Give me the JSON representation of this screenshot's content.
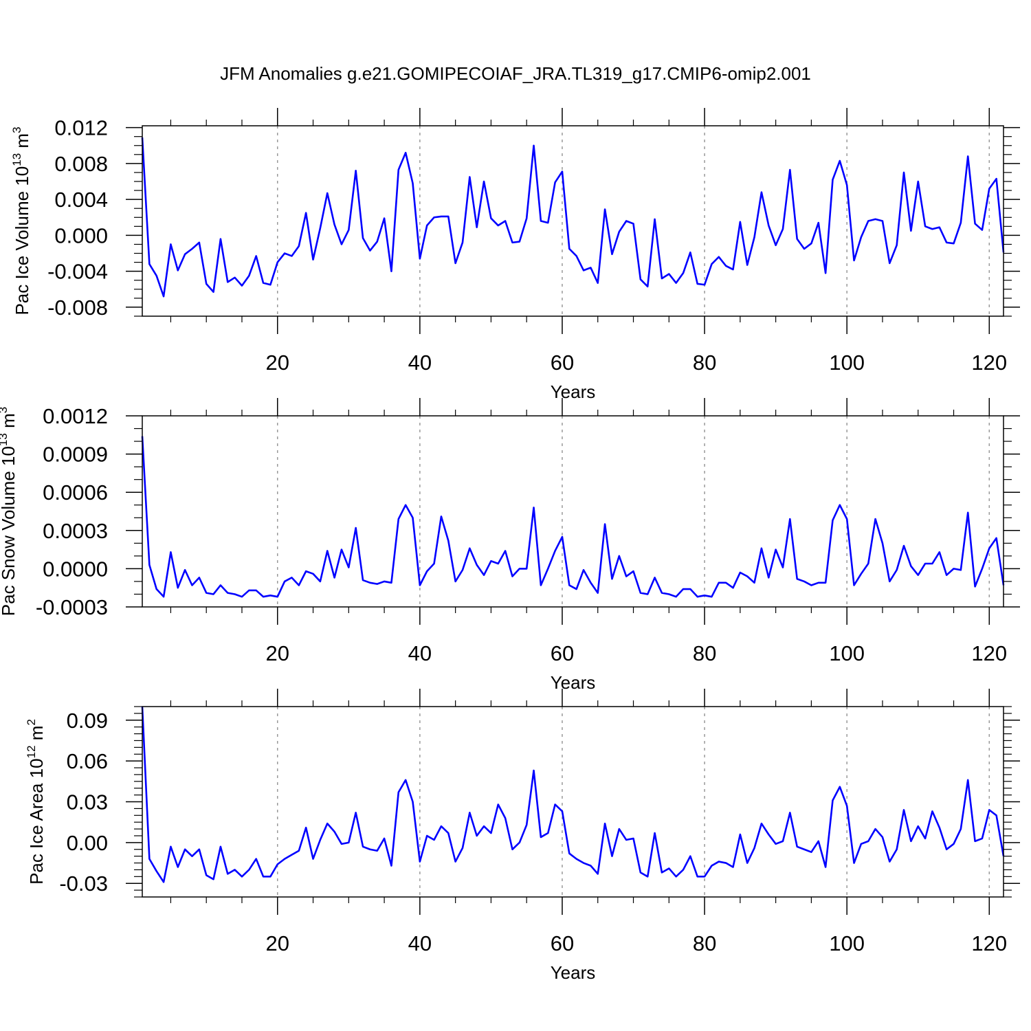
{
  "title": "JFM Anomalies g.e21.GOMIPECOIAF_JRA.TL319_g17.CMIP6-omip2.001",
  "colors": {
    "line": "#0000ff",
    "axis": "#000000",
    "grid": "#999999"
  },
  "chart_data": [
    {
      "type": "line",
      "name": "pac-ice-volume",
      "ylabel": "Pac Ice Volume 10",
      "ylabel_exp": "13",
      "ylabel_unit": " m",
      "ylabel_unit_exp": "3",
      "xlabel": "Years",
      "xlim": [
        1,
        122
      ],
      "ylim": [
        -0.009,
        0.0122
      ],
      "x_ticks": [
        20,
        40,
        60,
        80,
        100,
        120
      ],
      "y_ticks": [
        -0.008,
        -0.004,
        0.0,
        0.004,
        0.008,
        0.012
      ],
      "y_tick_labels": [
        "-0.008",
        "-0.004",
        "0.000",
        "0.004",
        "0.008",
        "0.012"
      ],
      "y_minor_step": 0.001,
      "series": [
        {
          "name": "Pac Ice Volume",
          "x_start": 1,
          "values": [
            0.0109,
            -0.0032,
            -0.0045,
            -0.0068,
            -0.001,
            -0.0039,
            -0.0021,
            -0.0015,
            -0.0008,
            -0.0054,
            -0.0063,
            -0.0004,
            -0.0052,
            -0.0047,
            -0.0056,
            -0.0045,
            -0.0023,
            -0.0053,
            -0.0055,
            -0.003,
            -0.002,
            -0.0023,
            -0.0012,
            0.0025,
            -0.0027,
            0.0008,
            0.0047,
            0.0012,
            -0.001,
            0.0006,
            0.0072,
            -0.0003,
            -0.0017,
            -0.0007,
            0.0019,
            -0.004,
            0.0073,
            0.0092,
            0.0058,
            -0.0026,
            0.0011,
            0.002,
            0.0021,
            0.0021,
            -0.0031,
            -0.0008,
            0.0065,
            0.0009,
            0.006,
            0.0019,
            0.0011,
            0.0016,
            -0.0008,
            -0.0007,
            0.0019,
            0.01,
            0.0016,
            0.0014,
            0.0059,
            0.0071,
            -0.0015,
            -0.0023,
            -0.0039,
            -0.0036,
            -0.0053,
            0.0029,
            -0.0021,
            0.0004,
            0.0016,
            0.0013,
            -0.0049,
            -0.0057,
            0.0018,
            -0.0048,
            -0.0043,
            -0.0053,
            -0.0042,
            -0.0019,
            -0.0054,
            -0.0055,
            -0.0032,
            -0.0024,
            -0.0034,
            -0.0038,
            0.0015,
            -0.0033,
            -0.0002,
            0.0048,
            0.0011,
            -0.0011,
            0.0007,
            0.0073,
            -0.0004,
            -0.0015,
            -0.0009,
            0.0014,
            -0.0042,
            0.0062,
            0.0083,
            0.0056,
            -0.0028,
            -0.0002,
            0.0016,
            0.0018,
            0.0016,
            -0.0031,
            -0.0011,
            0.007,
            0.0005,
            0.006,
            0.001,
            0.0007,
            0.0009,
            -0.0008,
            -0.0009,
            0.0014,
            0.0088,
            0.0013,
            0.0006,
            0.0052,
            0.0063,
            -0.0019
          ]
        }
      ]
    },
    {
      "type": "line",
      "name": "pac-snow-volume",
      "ylabel": "Pac Snow Volume 10",
      "ylabel_exp": "13",
      "ylabel_unit": " m",
      "ylabel_unit_exp": "3",
      "xlabel": "Years",
      "xlim": [
        1,
        122
      ],
      "ylim": [
        -0.0003,
        0.0012
      ],
      "x_ticks": [
        20,
        40,
        60,
        80,
        100,
        120
      ],
      "y_ticks": [
        -0.0003,
        0.0,
        0.0003,
        0.0006,
        0.0009,
        0.0012
      ],
      "y_tick_labels": [
        "-0.0003",
        "0.0000",
        "0.0003",
        "0.0006",
        "0.0009",
        "0.0012"
      ],
      "y_minor_step": 0.0001,
      "series": [
        {
          "name": "Pac Snow Volume",
          "x_start": 1,
          "values": [
            0.00104,
            3e-05,
            -0.00016,
            -0.00022,
            0.00013,
            -0.00015,
            -1e-05,
            -0.00013,
            -7e-05,
            -0.00019,
            -0.0002,
            -0.00013,
            -0.00019,
            -0.0002,
            -0.00022,
            -0.00017,
            -0.00017,
            -0.00022,
            -0.00021,
            -0.00022,
            -0.0001,
            -7e-05,
            -0.00013,
            -2e-05,
            -4e-05,
            -0.0001,
            0.00014,
            -7e-05,
            0.00015,
            1e-05,
            0.00032,
            -9e-05,
            -0.00011,
            -0.00012,
            -0.0001,
            -0.00011,
            0.00039,
            0.0005,
            0.0004,
            -0.00013,
            -2e-05,
            4e-05,
            0.00041,
            0.00022,
            -0.0001,
            -1e-05,
            0.00016,
            3e-05,
            -5e-05,
            6e-05,
            4e-05,
            0.00014,
            -6e-05,
            0.0,
            0.0,
            0.00048,
            -0.00013,
            0.0,
            0.00014,
            0.00025,
            -0.00013,
            -0.00016,
            -1e-05,
            -0.00011,
            -0.00019,
            0.00035,
            -8e-05,
            0.0001,
            -6e-05,
            -2e-05,
            -0.00019,
            -0.0002,
            -7e-05,
            -0.00019,
            -0.0002,
            -0.00022,
            -0.00016,
            -0.00016,
            -0.00022,
            -0.00021,
            -0.00022,
            -0.00011,
            -0.00011,
            -0.00015,
            -3e-05,
            -6e-05,
            -0.00011,
            0.00016,
            -7e-05,
            0.00015,
            1e-05,
            0.00039,
            -8e-05,
            -0.0001,
            -0.00013,
            -0.00011,
            -0.00011,
            0.00038,
            0.0005,
            0.00039,
            -0.00013,
            -4e-05,
            4e-05,
            0.00039,
            0.0002,
            -0.0001,
            -1e-05,
            0.00018,
            2e-05,
            -5e-05,
            4e-05,
            4e-05,
            0.00013,
            -5e-05,
            0.0,
            -1e-05,
            0.00044,
            -0.00014,
            0.0,
            0.00016,
            0.00024,
            -0.00013
          ]
        }
      ]
    },
    {
      "type": "line",
      "name": "pac-ice-area",
      "ylabel": "Pac Ice Area 10",
      "ylabel_exp": "12",
      "ylabel_unit": " m",
      "ylabel_unit_exp": "2",
      "xlabel": "Years",
      "xlim": [
        1,
        122
      ],
      "ylim": [
        -0.04,
        0.1
      ],
      "x_ticks": [
        20,
        40,
        60,
        80,
        100,
        120
      ],
      "y_ticks": [
        -0.03,
        0.0,
        0.03,
        0.06,
        0.09
      ],
      "y_tick_labels": [
        "-0.03",
        "0.00",
        "0.03",
        "0.06",
        "0.09"
      ],
      "y_minor_step": 0.005,
      "series": [
        {
          "name": "Pac Ice Area",
          "x_start": 1,
          "values": [
            0.1,
            -0.012,
            -0.021,
            -0.029,
            -0.003,
            -0.018,
            -0.005,
            -0.01,
            -0.005,
            -0.024,
            -0.027,
            -0.003,
            -0.023,
            -0.02,
            -0.025,
            -0.02,
            -0.012,
            -0.025,
            -0.025,
            -0.016,
            -0.012,
            -0.009,
            -0.006,
            0.011,
            -0.012,
            0.002,
            0.014,
            0.008,
            -0.001,
            0.0,
            0.022,
            -0.003,
            -0.005,
            -0.006,
            0.003,
            -0.017,
            0.037,
            0.046,
            0.03,
            -0.014,
            0.005,
            0.002,
            0.012,
            0.007,
            -0.014,
            -0.004,
            0.022,
            0.005,
            0.012,
            0.007,
            0.028,
            0.018,
            -0.005,
            0.0,
            0.013,
            0.053,
            0.004,
            0.007,
            0.028,
            0.023,
            -0.008,
            -0.012,
            -0.015,
            -0.017,
            -0.023,
            0.014,
            -0.01,
            0.01,
            0.002,
            0.003,
            -0.022,
            -0.025,
            0.007,
            -0.022,
            -0.019,
            -0.025,
            -0.02,
            -0.01,
            -0.025,
            -0.025,
            -0.017,
            -0.014,
            -0.015,
            -0.018,
            0.006,
            -0.015,
            -0.004,
            0.014,
            0.006,
            -0.001,
            0.001,
            0.022,
            -0.003,
            -0.005,
            -0.007,
            0.001,
            -0.018,
            0.031,
            0.041,
            0.027,
            -0.015,
            -0.001,
            0.001,
            0.01,
            0.004,
            -0.014,
            -0.005,
            0.024,
            0.001,
            0.012,
            0.003,
            0.023,
            0.011,
            -0.005,
            -0.001,
            0.01,
            0.046,
            0.001,
            0.003,
            0.024,
            0.02,
            -0.01
          ]
        }
      ]
    }
  ]
}
